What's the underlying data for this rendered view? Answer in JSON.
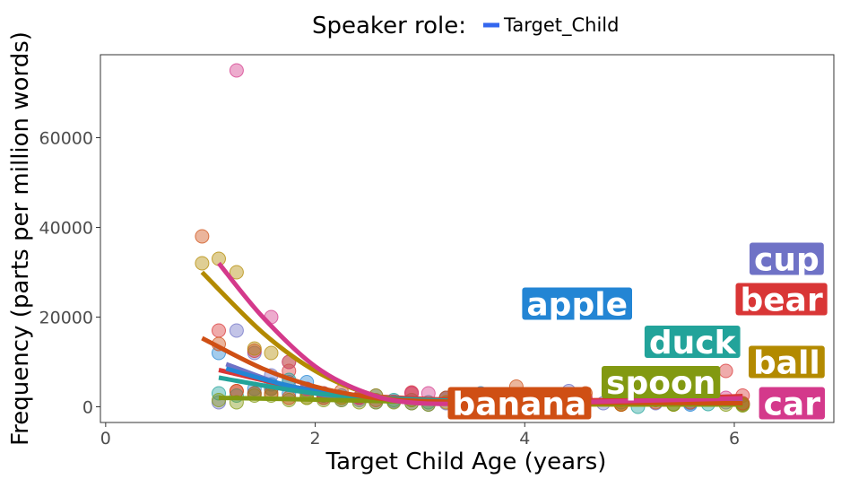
{
  "chart_data": {
    "type": "scatter",
    "title": "",
    "xlabel": "Target Child Age (years)",
    "ylabel": "Frequency (parts per million words)",
    "xlim": [
      -0.05,
      6.95
    ],
    "ylim": [
      -3500,
      78500
    ],
    "x_ticks": [
      0,
      2,
      4,
      6
    ],
    "y_ticks": [
      0,
      20000,
      40000,
      60000
    ],
    "x_tick_labels": [
      "0",
      "2",
      "4",
      "6"
    ],
    "y_tick_labels": [
      "0",
      "20000",
      "40000",
      "60000"
    ],
    "grid": false,
    "legend": {
      "position": "top",
      "title": "Speaker role:",
      "entries": [
        {
          "label": "Target_Child",
          "color": "#3366ee"
        }
      ]
    },
    "series": [
      {
        "word": "cup",
        "color": "#6f72c6",
        "points": [
          [
            1.08,
            1000
          ],
          [
            1.25,
            17000
          ],
          [
            1.42,
            12000
          ],
          [
            1.58,
            7000
          ],
          [
            1.75,
            5500
          ],
          [
            1.92,
            4000
          ],
          [
            2.08,
            2000
          ],
          [
            2.25,
            1500
          ],
          [
            2.42,
            1500
          ],
          [
            2.58,
            1000
          ],
          [
            2.75,
            1200
          ],
          [
            2.92,
            800
          ],
          [
            3.08,
            500
          ],
          [
            3.25,
            800
          ],
          [
            3.58,
            600
          ],
          [
            4.08,
            800
          ],
          [
            4.42,
            3500
          ],
          [
            4.75,
            800
          ],
          [
            5.25,
            800
          ],
          [
            5.58,
            800
          ],
          [
            5.92,
            1000
          ],
          [
            6.08,
            700
          ]
        ],
        "trend": [
          [
            1.15,
            9500
          ],
          [
            2.0,
            3000
          ],
          [
            3.0,
            1200
          ],
          [
            4.0,
            800
          ],
          [
            5.0,
            800
          ],
          [
            6.08,
            1000
          ]
        ],
        "label_at": [
          6.5,
          33000
        ]
      },
      {
        "word": "bear",
        "color": "#d93636",
        "points": [
          [
            1.08,
            17000
          ],
          [
            1.25,
            3500
          ],
          [
            1.42,
            12500
          ],
          [
            1.58,
            4000
          ],
          [
            1.75,
            8000
          ],
          [
            1.92,
            3000
          ],
          [
            2.08,
            2500
          ],
          [
            2.25,
            2000
          ],
          [
            2.42,
            2000
          ],
          [
            2.58,
            1500
          ],
          [
            2.92,
            3200
          ],
          [
            3.25,
            2000
          ],
          [
            3.58,
            2500
          ],
          [
            4.25,
            2000
          ],
          [
            4.58,
            2000
          ],
          [
            4.92,
            1500
          ],
          [
            5.25,
            1500
          ],
          [
            5.58,
            2000
          ],
          [
            5.92,
            8000
          ],
          [
            6.08,
            2500
          ]
        ],
        "trend": [
          [
            1.08,
            8200
          ],
          [
            2.0,
            3600
          ],
          [
            3.0,
            1800
          ],
          [
            4.0,
            1400
          ],
          [
            5.0,
            1600
          ],
          [
            6.08,
            2400
          ]
        ],
        "label_at": [
          6.45,
          24000
        ]
      },
      {
        "word": "apple",
        "color": "#2385d4",
        "points": [
          [
            1.08,
            12000
          ],
          [
            1.42,
            4000
          ],
          [
            1.58,
            5000
          ],
          [
            1.75,
            3000
          ],
          [
            1.92,
            5500
          ],
          [
            2.08,
            3000
          ],
          [
            2.25,
            2500
          ],
          [
            2.58,
            2500
          ],
          [
            2.92,
            1500
          ],
          [
            3.25,
            2000
          ],
          [
            3.58,
            3000
          ],
          [
            3.92,
            2000
          ],
          [
            4.42,
            1000
          ],
          [
            4.92,
            1000
          ],
          [
            5.58,
            500
          ]
        ],
        "trend": [
          [
            1.15,
            8500
          ],
          [
            2.0,
            3500
          ],
          [
            3.0,
            1500
          ],
          [
            4.0,
            1000
          ],
          [
            5.0,
            700
          ],
          [
            6.08,
            500
          ]
        ],
        "label_at": [
          4.5,
          23000
        ]
      },
      {
        "word": "duck",
        "color": "#22a39a",
        "points": [
          [
            1.08,
            3000
          ],
          [
            1.25,
            2500
          ],
          [
            1.42,
            3000
          ],
          [
            1.58,
            4000
          ],
          [
            1.75,
            6000
          ],
          [
            1.92,
            3500
          ],
          [
            2.08,
            2500
          ],
          [
            2.42,
            2000
          ],
          [
            2.75,
            1500
          ],
          [
            3.08,
            1000
          ],
          [
            3.42,
            1200
          ],
          [
            3.75,
            1500
          ],
          [
            4.08,
            800
          ],
          [
            4.58,
            1200
          ],
          [
            5.08,
            0
          ],
          [
            5.42,
            600
          ],
          [
            5.75,
            600
          ],
          [
            6.08,
            500
          ]
        ],
        "trend": [
          [
            1.08,
            6500
          ],
          [
            2.0,
            3000
          ],
          [
            3.0,
            1600
          ],
          [
            4.0,
            1000
          ],
          [
            5.0,
            800
          ],
          [
            6.08,
            700
          ]
        ],
        "label_at": [
          5.6,
          14500
        ]
      },
      {
        "word": "ball",
        "color": "#b38a00",
        "points": [
          [
            0.92,
            32000
          ],
          [
            1.08,
            33000
          ],
          [
            1.25,
            30000
          ],
          [
            1.42,
            13000
          ],
          [
            1.58,
            12000
          ],
          [
            1.75,
            10000
          ],
          [
            1.92,
            2000
          ],
          [
            2.08,
            3000
          ],
          [
            2.25,
            2000
          ],
          [
            2.58,
            2500
          ],
          [
            2.92,
            1500
          ],
          [
            3.25,
            1000
          ],
          [
            3.58,
            800
          ],
          [
            3.92,
            1000
          ],
          [
            4.42,
            500
          ],
          [
            4.92,
            500
          ],
          [
            5.42,
            500
          ],
          [
            6.08,
            500
          ]
        ],
        "trend": [
          [
            0.92,
            30000
          ],
          [
            1.5,
            16500
          ],
          [
            2.0,
            8000
          ],
          [
            2.5,
            3000
          ],
          [
            3.0,
            1000
          ],
          [
            4.0,
            600
          ],
          [
            5.0,
            500
          ],
          [
            6.08,
            500
          ]
        ],
        "label_at": [
          6.5,
          10000
        ]
      },
      {
        "word": "spoon",
        "color": "#829911",
        "points": [
          [
            1.08,
            1500
          ],
          [
            1.25,
            1000
          ],
          [
            1.42,
            2500
          ],
          [
            1.58,
            2500
          ],
          [
            1.75,
            1500
          ],
          [
            1.92,
            2000
          ],
          [
            2.08,
            1500
          ],
          [
            2.25,
            1500
          ],
          [
            2.42,
            1000
          ],
          [
            2.58,
            1000
          ],
          [
            2.75,
            1000
          ],
          [
            2.92,
            800
          ],
          [
            3.08,
            500
          ],
          [
            3.42,
            800
          ],
          [
            3.92,
            600
          ],
          [
            4.42,
            600
          ],
          [
            4.92,
            500
          ],
          [
            5.42,
            500
          ],
          [
            5.92,
            500
          ],
          [
            6.08,
            300
          ]
        ],
        "trend": [
          [
            1.08,
            2000
          ],
          [
            2.0,
            1600
          ],
          [
            3.0,
            1100
          ],
          [
            4.0,
            800
          ],
          [
            5.0,
            600
          ],
          [
            6.08,
            500
          ]
        ],
        "label_at": [
          5.3,
          5500
        ]
      },
      {
        "word": "banana",
        "color": "#cf4f14",
        "points": [
          [
            0.92,
            38000
          ],
          [
            1.08,
            14000
          ],
          [
            1.25,
            3500
          ],
          [
            1.42,
            3000
          ],
          [
            1.58,
            3000
          ],
          [
            1.75,
            2000
          ],
          [
            2.08,
            2000
          ],
          [
            2.25,
            3500
          ],
          [
            2.42,
            2000
          ],
          [
            2.92,
            3000
          ],
          [
            3.25,
            2000
          ],
          [
            3.92,
            4500
          ],
          [
            4.58,
            3000
          ],
          [
            4.92,
            500
          ],
          [
            5.25,
            1000
          ],
          [
            5.58,
            1000
          ],
          [
            6.08,
            800
          ]
        ],
        "trend": [
          [
            0.92,
            15300
          ],
          [
            1.5,
            8500
          ],
          [
            2.0,
            4500
          ],
          [
            2.5,
            2200
          ],
          [
            3.0,
            1300
          ],
          [
            4.0,
            1000
          ],
          [
            5.0,
            900
          ],
          [
            6.08,
            800
          ]
        ],
        "label_at": [
          3.95,
          800
        ]
      },
      {
        "word": "car",
        "color": "#d4398b",
        "points": [
          [
            1.25,
            75000
          ],
          [
            1.58,
            20000
          ],
          [
            1.75,
            10000
          ],
          [
            1.92,
            4000
          ],
          [
            2.08,
            3000
          ],
          [
            2.42,
            2000
          ],
          [
            2.92,
            3000
          ],
          [
            3.08,
            3000
          ],
          [
            3.58,
            2000
          ],
          [
            3.92,
            1500
          ],
          [
            4.25,
            2000
          ],
          [
            4.58,
            1500
          ],
          [
            4.92,
            2000
          ],
          [
            5.42,
            2000
          ],
          [
            5.92,
            2000
          ]
        ],
        "trend": [
          [
            1.08,
            32000
          ],
          [
            1.5,
            20000
          ],
          [
            2.0,
            9000
          ],
          [
            2.5,
            3000
          ],
          [
            3.0,
            800
          ],
          [
            4.0,
            800
          ],
          [
            5.0,
            1300
          ],
          [
            6.08,
            1900
          ]
        ],
        "label_at": [
          6.55,
          800
        ]
      }
    ]
  }
}
